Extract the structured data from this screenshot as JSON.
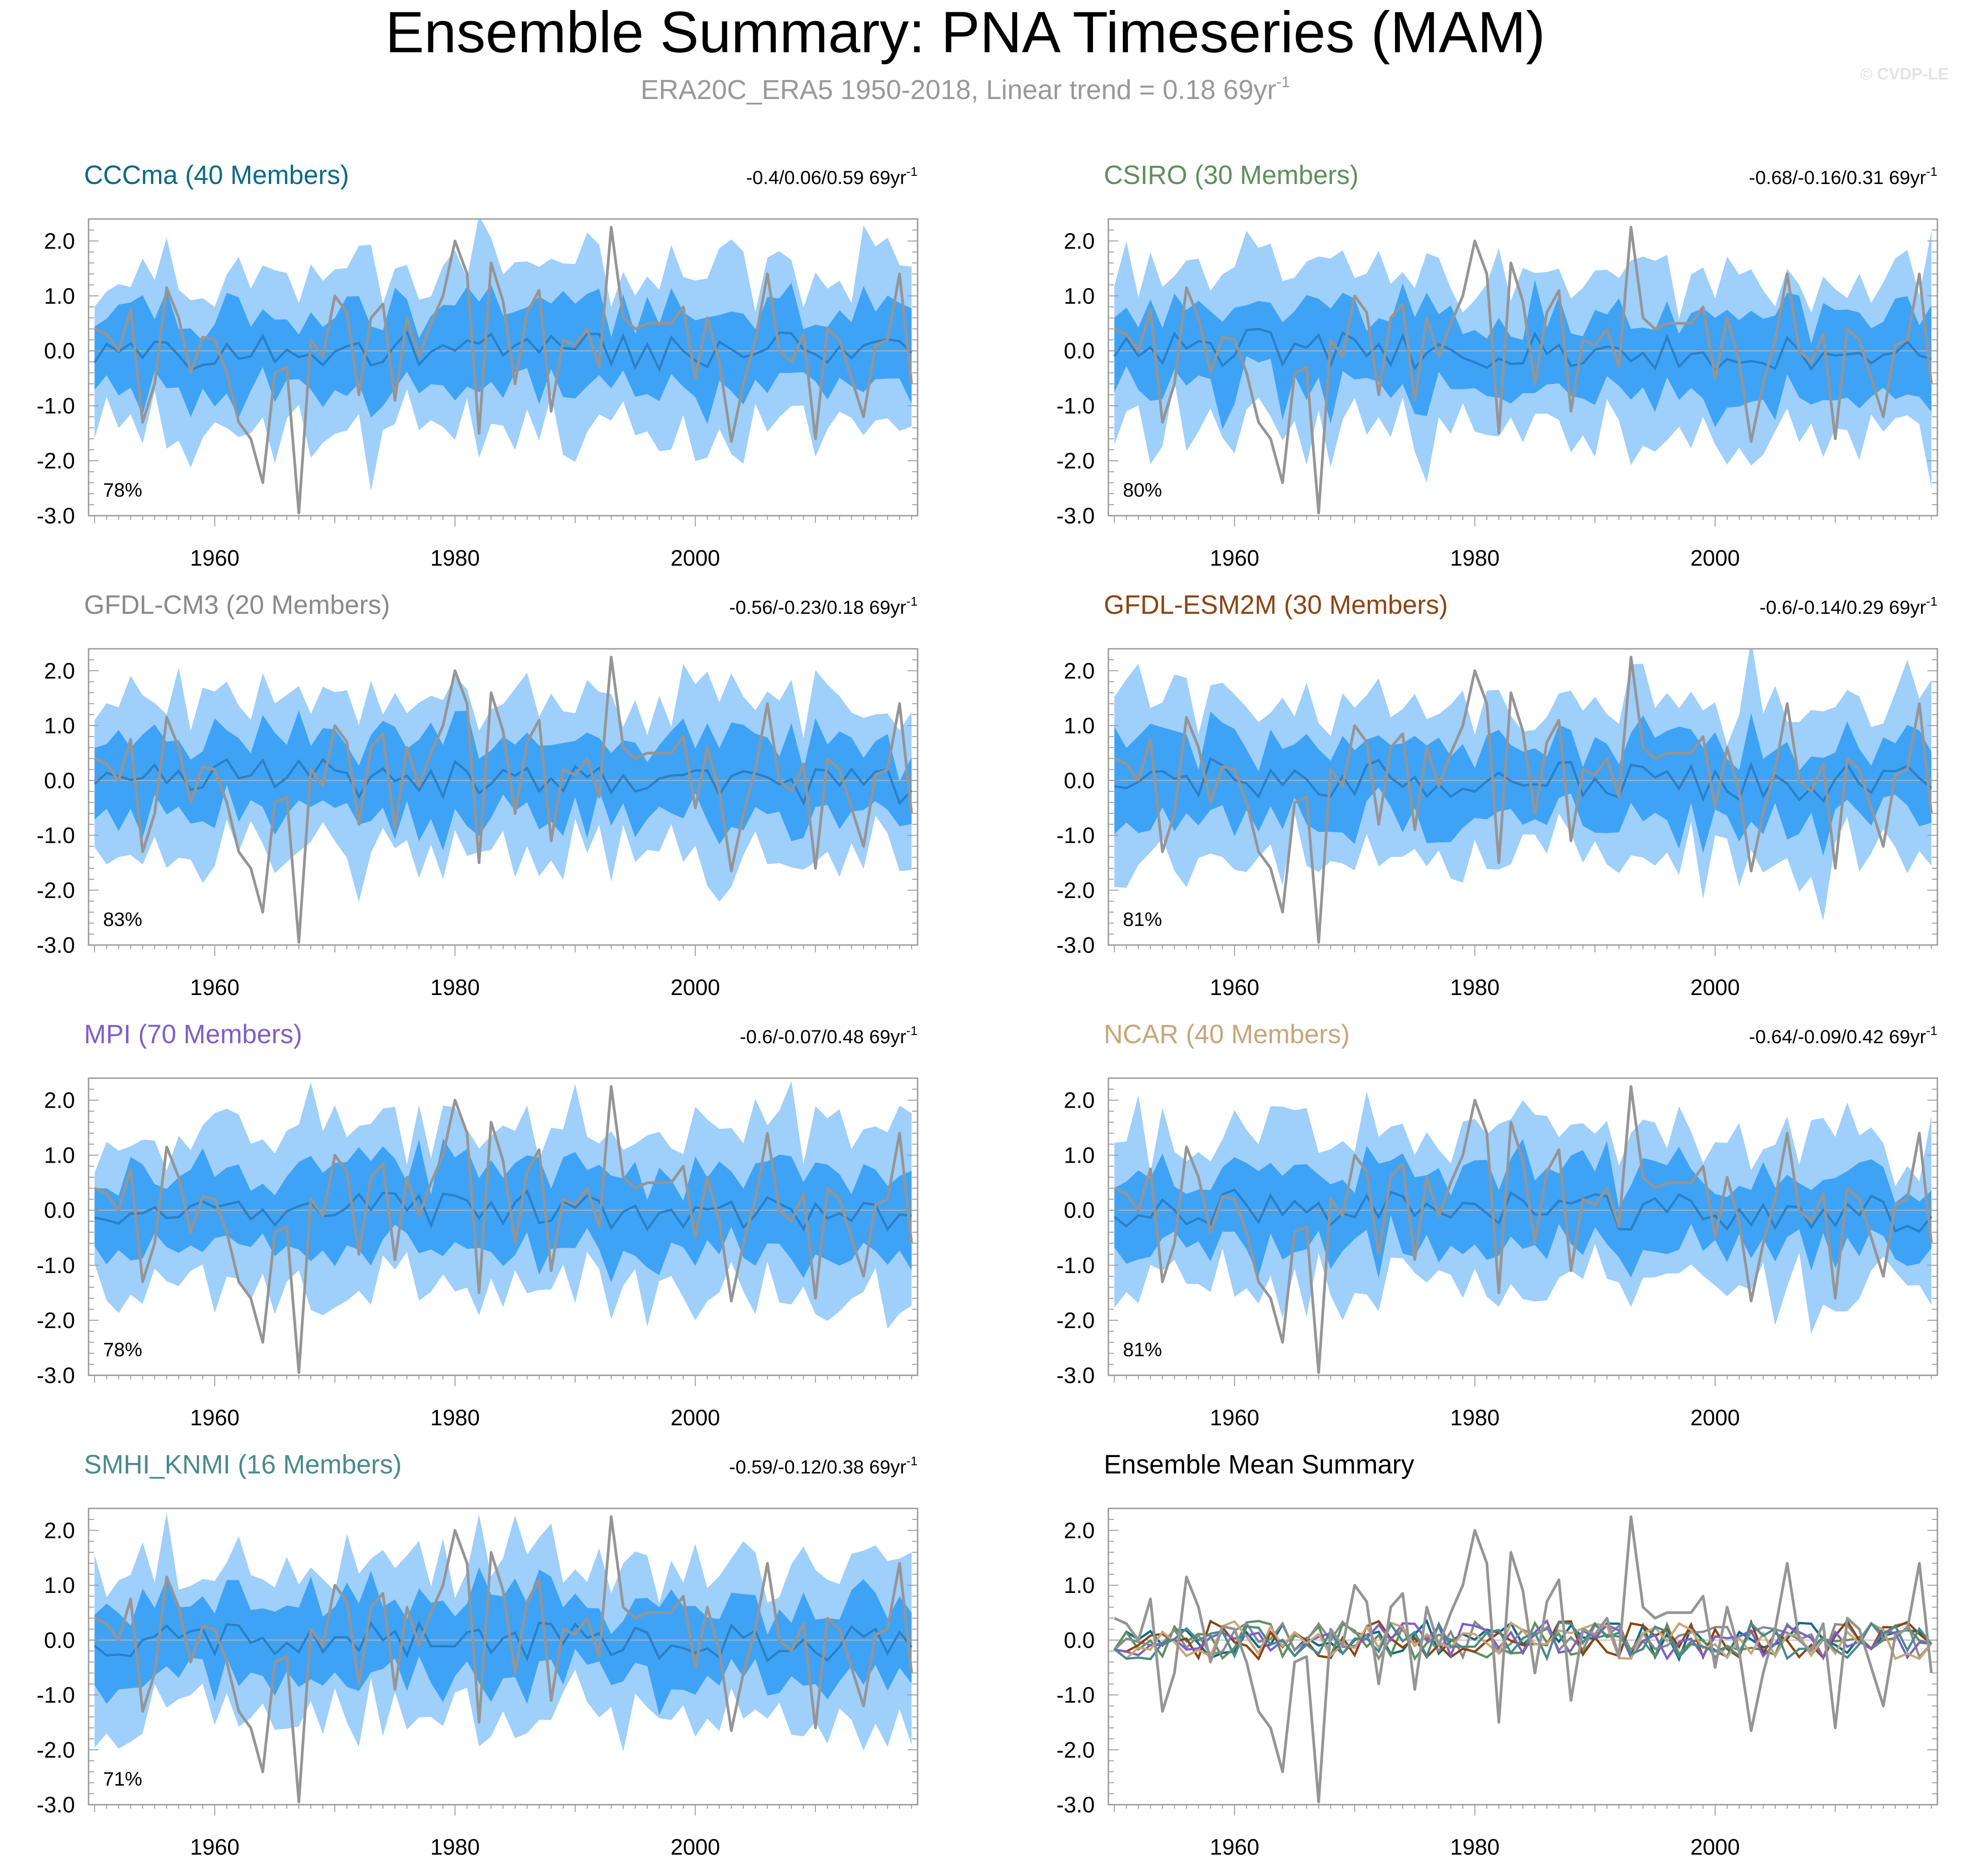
{
  "header": {
    "title": "Ensemble Summary: PNA Timeseries (MAM)",
    "subtitle_main": "ERA20C_ERA5 1950-2018, Linear trend = 0.18 69yr",
    "subtitle_sup": "-1",
    "credit": "© CVDP-LE"
  },
  "colors": {
    "outer_band": "#9fcffb",
    "inner_band": "#3fa3f5",
    "ensemble_mean": "#2a80c8",
    "observed": "#959595",
    "zero_line": "#b3b3b3"
  },
  "chart_data": [
    {
      "type": "line",
      "title": "CCCma (40 Members)",
      "title_color": "#0b6a86",
      "trend_text": "-0.4/0.06/0.59 69yr",
      "trend_sup": "-1",
      "percent": "78%",
      "series": [
        "10-90% ensemble spread",
        "25-75% ensemble spread",
        "Ensemble mean",
        "ERA20C_ERA5 observed"
      ],
      "x_range": [
        1950,
        2018
      ],
      "ylim": [
        -3.0,
        2.4
      ],
      "yticks": [
        "2.0",
        "1.0",
        "0.0",
        "-1.0",
        "-2.0",
        "-3.0"
      ],
      "xticks": [
        "1960",
        "1980",
        "2000"
      ]
    },
    {
      "type": "line",
      "title": "CSIRO (30 Members)",
      "title_color": "#5f8f5f",
      "trend_text": "-0.68/-0.16/0.31 69yr",
      "trend_sup": "-1",
      "percent": "80%",
      "series": [
        "10-90% ensemble spread",
        "25-75% ensemble spread",
        "Ensemble mean",
        "ERA20C_ERA5 observed"
      ],
      "x_range": [
        1950,
        2018
      ],
      "ylim": [
        -3.0,
        2.4
      ],
      "yticks": [
        "2.0",
        "1.0",
        "0.0",
        "-1.0",
        "-2.0",
        "-3.0"
      ],
      "xticks": [
        "1960",
        "1980",
        "2000"
      ]
    },
    {
      "type": "line",
      "title": "GFDL-CM3 (20 Members)",
      "title_color": "#8a8a8a",
      "trend_text": "-0.56/-0.23/0.18 69yr",
      "trend_sup": "-1",
      "percent": "83%",
      "series": [
        "10-90% ensemble spread",
        "25-75% ensemble spread",
        "Ensemble mean",
        "ERA20C_ERA5 observed"
      ],
      "x_range": [
        1950,
        2018
      ],
      "ylim": [
        -3.0,
        2.4
      ],
      "yticks": [
        "2.0",
        "1.0",
        "0.0",
        "-1.0",
        "-2.0",
        "-3.0"
      ],
      "xticks": [
        "1960",
        "1980",
        "2000"
      ]
    },
    {
      "type": "line",
      "title": "GFDL-ESM2M (30 Members)",
      "title_color": "#8b4513",
      "trend_text": "-0.6/-0.14/0.29 69yr",
      "trend_sup": "-1",
      "percent": "81%",
      "series": [
        "10-90% ensemble spread",
        "25-75% ensemble spread",
        "Ensemble mean",
        "ERA20C_ERA5 observed"
      ],
      "x_range": [
        1950,
        2018
      ],
      "ylim": [
        -3.0,
        2.4
      ],
      "yticks": [
        "2.0",
        "1.0",
        "0.0",
        "-1.0",
        "-2.0",
        "-3.0"
      ],
      "xticks": [
        "1960",
        "1980",
        "2000"
      ]
    },
    {
      "type": "line",
      "title": "MPI (70 Members)",
      "title_color": "#7f5fc7",
      "trend_text": "-0.6/-0.07/0.48 69yr",
      "trend_sup": "-1",
      "percent": "78%",
      "series": [
        "10-90% ensemble spread",
        "25-75% ensemble spread",
        "Ensemble mean",
        "ERA20C_ERA5 observed"
      ],
      "x_range": [
        1950,
        2018
      ],
      "ylim": [
        -3.0,
        2.4
      ],
      "yticks": [
        "2.0",
        "1.0",
        "0.0",
        "-1.0",
        "-2.0",
        "-3.0"
      ],
      "xticks": [
        "1960",
        "1980",
        "2000"
      ]
    },
    {
      "type": "line",
      "title": "NCAR (40 Members)",
      "title_color": "#c9a57a",
      "trend_text": "-0.64/-0.09/0.42 69yr",
      "trend_sup": "-1",
      "percent": "81%",
      "series": [
        "10-90% ensemble spread",
        "25-75% ensemble spread",
        "Ensemble mean",
        "ERA20C_ERA5 observed"
      ],
      "x_range": [
        1950,
        2018
      ],
      "ylim": [
        -3.0,
        2.4
      ],
      "yticks": [
        "2.0",
        "1.0",
        "0.0",
        "-1.0",
        "-2.0",
        "-3.0"
      ],
      "xticks": [
        "1960",
        "1980",
        "2000"
      ]
    },
    {
      "type": "line",
      "title": "SMHI_KNMI (16 Members)",
      "title_color": "#4a8a8a",
      "trend_text": "-0.59/-0.12/0.38 69yr",
      "trend_sup": "-1",
      "percent": "71%",
      "series": [
        "10-90% ensemble spread",
        "25-75% ensemble spread",
        "Ensemble mean",
        "ERA20C_ERA5 observed"
      ],
      "x_range": [
        1950,
        2018
      ],
      "ylim": [
        -3.0,
        2.4
      ],
      "yticks": [
        "2.0",
        "1.0",
        "0.0",
        "-1.0",
        "-2.0",
        "-3.0"
      ],
      "xticks": [
        "1960",
        "1980",
        "2000"
      ]
    },
    {
      "type": "line",
      "title": "Ensemble Mean Summary",
      "title_color": "#000000",
      "series": [
        "ERA20C_ERA5 observed",
        "CCCma",
        "CSIRO",
        "GFDL-CM3",
        "GFDL-ESM2M",
        "MPI",
        "NCAR",
        "SMHI_KNMI"
      ],
      "series_colors": [
        "#959595",
        "#0b6a86",
        "#5f8f5f",
        "#8a8a8a",
        "#8b4513",
        "#7f5fc7",
        "#c9a57a",
        "#4a8a8a"
      ],
      "x_range": [
        1950,
        2018
      ],
      "ylim": [
        -3.0,
        2.4
      ],
      "yticks": [
        "2.0",
        "1.0",
        "0.0",
        "-1.0",
        "-2.0",
        "-3.0"
      ],
      "xticks": [
        "1960",
        "1980",
        "2000"
      ]
    }
  ]
}
